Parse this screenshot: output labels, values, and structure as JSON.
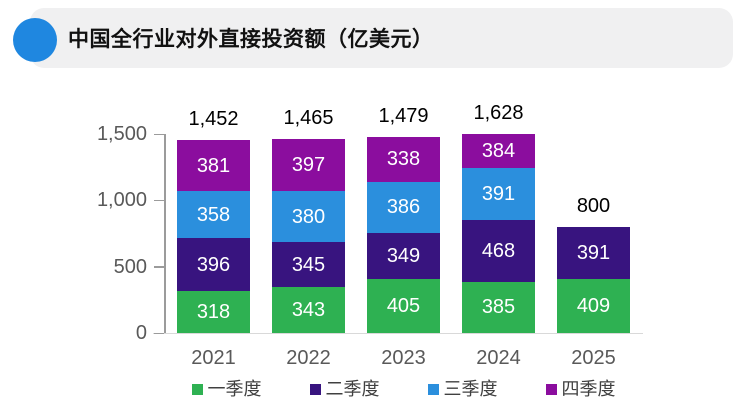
{
  "header": {
    "title": "中国全行业对外直接投资额（亿美元）"
  },
  "colors": {
    "bullet": "#1f87e0",
    "header_bg": "#f0f0f1",
    "axis_line": "#9b9b9b",
    "baseline": "#d9d9d9",
    "axis_label": "#595959",
    "legend_text": "#404040",
    "total_label": "#000000",
    "segment_label": "#ffffff"
  },
  "chart_data": {
    "type": "bar",
    "stacked": true,
    "title": "中国全行业对外直接投资额（亿美元）",
    "unit": "亿美元",
    "categories": [
      "2021",
      "2022",
      "2023",
      "2024",
      "2025"
    ],
    "series": [
      {
        "name": "一季度",
        "color": "#2eb152",
        "values": [
          318,
          343,
          405,
          385,
          409
        ]
      },
      {
        "name": "二季度",
        "color": "#38147f",
        "values": [
          396,
          345,
          349,
          468,
          391
        ]
      },
      {
        "name": "三季度",
        "color": "#2b8fdd",
        "values": [
          358,
          380,
          386,
          391,
          null
        ]
      },
      {
        "name": "四季度",
        "color": "#8b0d9e",
        "values": [
          381,
          397,
          338,
          384,
          null
        ]
      }
    ],
    "total_labels": [
      "1,452",
      "1,465",
      "1,479",
      "1,628",
      "800"
    ],
    "ylim": [
      0,
      1500
    ],
    "yticks": [
      {
        "value": 0,
        "label": "0"
      },
      {
        "value": 500,
        "label": "500"
      },
      {
        "value": 1000,
        "label": "1,000"
      },
      {
        "value": 1500,
        "label": "1,500"
      }
    ],
    "legend_position": "bottom",
    "grid": false
  }
}
